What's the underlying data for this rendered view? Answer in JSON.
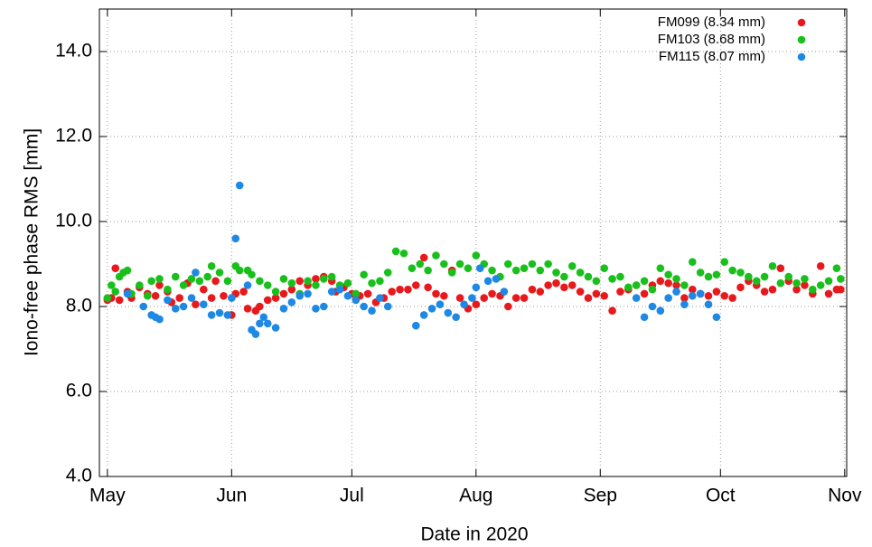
{
  "chart_data": {
    "type": "scatter",
    "xlabel": "Date in 2020",
    "ylabel": "Iono-free phase RMS [mm]",
    "xlim": [
      -2,
      184.5
    ],
    "ylim": [
      4,
      15
    ],
    "xticks": [
      {
        "value": 0,
        "label": "May"
      },
      {
        "value": 31,
        "label": "Jun"
      },
      {
        "value": 61,
        "label": "Jul"
      },
      {
        "value": 92,
        "label": "Aug"
      },
      {
        "value": 123,
        "label": "Sep"
      },
      {
        "value": 153,
        "label": "Oct"
      },
      {
        "value": 184,
        "label": "Nov"
      }
    ],
    "yticks": [
      {
        "value": 4,
        "label": "4.0"
      },
      {
        "value": 6,
        "label": "6.0"
      },
      {
        "value": 8,
        "label": "8.0"
      },
      {
        "value": 10,
        "label": "10.0"
      },
      {
        "value": 12,
        "label": "12.0"
      },
      {
        "value": 14,
        "label": "14.0"
      }
    ],
    "grid": true,
    "legend": "upper right",
    "series": [
      {
        "name": "FM099 (8.34 mm)",
        "color": "#e8191c",
        "x": [
          0,
          1,
          2,
          3,
          5,
          6,
          8,
          10,
          12,
          13,
          15,
          16,
          18,
          20,
          22,
          24,
          26,
          27,
          29,
          31,
          32,
          34,
          35,
          37,
          38,
          40,
          42,
          44,
          46,
          48,
          50,
          52,
          54,
          56,
          57,
          59,
          61,
          63,
          65,
          67,
          69,
          71,
          73,
          75,
          77,
          79,
          80,
          82,
          84,
          86,
          88,
          90,
          92,
          94,
          96,
          98,
          100,
          102,
          104,
          106,
          108,
          110,
          112,
          114,
          116,
          118,
          120,
          122,
          124,
          126,
          128,
          130,
          132,
          134,
          136,
          138,
          140,
          142,
          144,
          146,
          148,
          150,
          152,
          154,
          156,
          158,
          160,
          162,
          164,
          166,
          168,
          170,
          172,
          174,
          176,
          178,
          180,
          182,
          183
        ],
        "values": [
          8.15,
          8.2,
          8.9,
          8.15,
          8.35,
          8.2,
          8.45,
          8.3,
          8.25,
          8.5,
          8.35,
          8.1,
          8.2,
          8.55,
          8.05,
          8.4,
          8.2,
          8.6,
          8.25,
          7.8,
          8.3,
          8.35,
          7.95,
          7.9,
          8.0,
          8.15,
          8.2,
          8.3,
          8.4,
          8.6,
          8.5,
          8.65,
          8.7,
          8.6,
          8.35,
          8.45,
          8.3,
          8.25,
          8.3,
          8.1,
          8.2,
          8.35,
          8.4,
          8.4,
          8.5,
          9.15,
          8.45,
          8.3,
          8.25,
          8.85,
          8.2,
          7.95,
          8.05,
          8.2,
          8.3,
          8.25,
          8.0,
          8.2,
          8.2,
          8.4,
          8.35,
          8.5,
          8.55,
          8.45,
          8.5,
          8.35,
          8.2,
          8.3,
          8.25,
          7.9,
          8.35,
          8.4,
          8.5,
          8.3,
          8.5,
          8.6,
          8.55,
          8.5,
          8.2,
          8.4,
          8.3,
          8.25,
          8.35,
          8.25,
          8.2,
          8.45,
          8.6,
          8.5,
          8.35,
          8.4,
          8.9,
          8.6,
          8.4,
          8.5,
          8.3,
          8.95,
          8.3,
          8.4,
          8.4
        ]
      },
      {
        "name": "FM103 (8.68 mm)",
        "color": "#19c01c",
        "x": [
          0,
          1,
          2,
          3,
          4,
          5,
          6,
          8,
          10,
          11,
          13,
          15,
          17,
          19,
          21,
          23,
          25,
          26,
          28,
          30,
          32,
          33,
          35,
          36,
          38,
          40,
          42,
          44,
          46,
          48,
          50,
          52,
          54,
          56,
          58,
          60,
          62,
          64,
          66,
          68,
          70,
          72,
          74,
          76,
          78,
          80,
          82,
          84,
          86,
          88,
          90,
          92,
          94,
          96,
          98,
          100,
          102,
          104,
          106,
          108,
          110,
          112,
          114,
          116,
          118,
          120,
          122,
          124,
          126,
          128,
          130,
          132,
          134,
          136,
          138,
          140,
          142,
          144,
          146,
          148,
          150,
          152,
          154,
          156,
          158,
          160,
          162,
          164,
          166,
          168,
          170,
          172,
          174,
          176,
          178,
          180,
          182,
          183
        ],
        "values": [
          8.2,
          8.5,
          8.35,
          8.7,
          8.8,
          8.85,
          8.3,
          8.5,
          8.25,
          8.6,
          8.65,
          8.4,
          8.7,
          8.5,
          8.65,
          8.6,
          8.7,
          8.95,
          8.8,
          8.6,
          8.95,
          8.85,
          8.85,
          8.75,
          8.6,
          8.5,
          8.35,
          8.65,
          8.55,
          8.3,
          8.6,
          8.5,
          8.65,
          8.7,
          8.5,
          8.55,
          8.3,
          8.75,
          8.55,
          8.6,
          8.8,
          9.3,
          9.25,
          8.9,
          9.0,
          8.85,
          9.2,
          9.0,
          8.8,
          9.0,
          8.9,
          9.2,
          9.0,
          8.85,
          8.7,
          9.0,
          8.85,
          8.9,
          9.0,
          8.85,
          9.0,
          8.8,
          8.7,
          8.95,
          8.8,
          8.7,
          8.6,
          8.9,
          8.65,
          8.7,
          8.45,
          8.5,
          8.6,
          8.4,
          8.9,
          8.75,
          8.65,
          8.5,
          9.05,
          8.8,
          8.7,
          8.75,
          9.05,
          8.85,
          8.8,
          8.7,
          8.6,
          8.7,
          8.95,
          8.55,
          8.7,
          8.55,
          8.65,
          8.4,
          8.5,
          8.6,
          8.9,
          8.65
        ]
      },
      {
        "name": "FM115 (8.07 mm)",
        "color": "#1e88e5",
        "x": [
          5,
          9,
          11,
          12,
          13,
          15,
          17,
          19,
          21,
          22,
          24,
          26,
          28,
          30,
          31,
          32,
          33,
          35,
          36,
          37,
          38,
          39,
          40,
          42,
          44,
          46,
          48,
          50,
          52,
          54,
          56,
          58,
          60,
          62,
          64,
          66,
          68,
          70,
          77,
          79,
          81,
          83,
          85,
          87,
          89,
          91,
          92,
          93,
          95,
          97,
          99,
          132,
          134,
          136,
          138,
          140,
          142,
          144,
          146,
          148,
          150,
          152
        ],
        "values": [
          8.3,
          8.0,
          7.8,
          7.75,
          7.7,
          8.15,
          7.95,
          8.0,
          8.2,
          8.8,
          8.05,
          7.8,
          7.85,
          7.8,
          8.2,
          9.6,
          10.85,
          8.5,
          7.45,
          7.35,
          7.6,
          7.75,
          7.6,
          7.5,
          7.95,
          8.1,
          8.25,
          8.3,
          7.95,
          8.0,
          8.35,
          8.4,
          8.25,
          8.15,
          8.0,
          7.9,
          8.2,
          8.0,
          7.55,
          7.8,
          7.95,
          8.05,
          7.85,
          7.75,
          8.05,
          8.2,
          8.45,
          8.9,
          8.6,
          8.65,
          8.35,
          8.2,
          7.75,
          8.0,
          7.9,
          8.2,
          8.35,
          8.05,
          8.25,
          8.3,
          8.05,
          7.75
        ]
      }
    ]
  }
}
